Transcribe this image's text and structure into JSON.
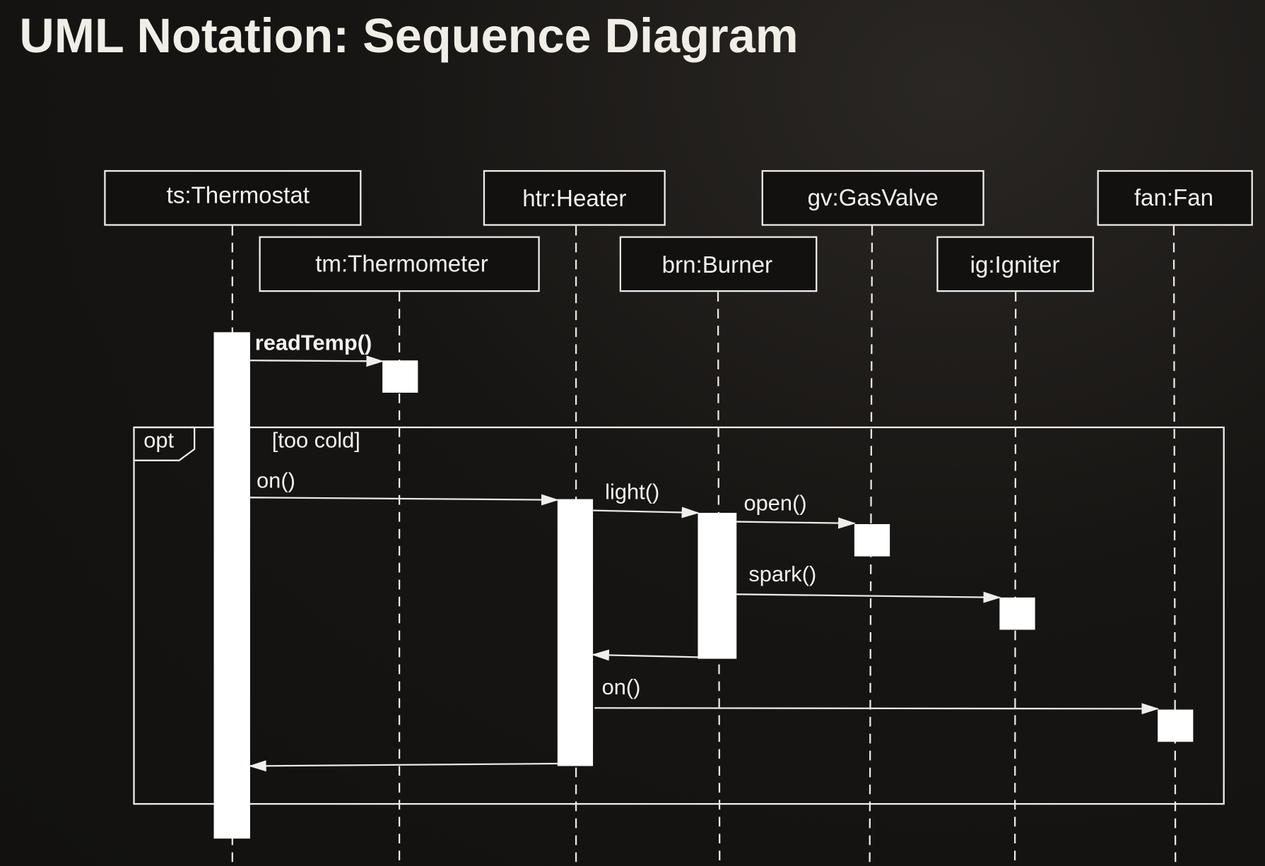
{
  "title": "UML Notation: Sequence Diagram",
  "lifelines": {
    "thermostat": "ts:Thermostat",
    "thermometer": "tm:Thermometer",
    "heater": "htr:Heater",
    "burner": "brn:Burner",
    "gasvalve": "gv:GasValve",
    "igniter": "ig:Igniter",
    "fan": "fan:Fan"
  },
  "fragment": {
    "operator": "opt",
    "guard": "[too cold]"
  },
  "messages": {
    "read_temp": "readTemp()",
    "heater_on": "on()",
    "light": "light()",
    "open": "open()",
    "spark": "spark()",
    "fan_on": "on()"
  },
  "colors": {
    "background": "#141210",
    "foreground": "#ffffff"
  }
}
